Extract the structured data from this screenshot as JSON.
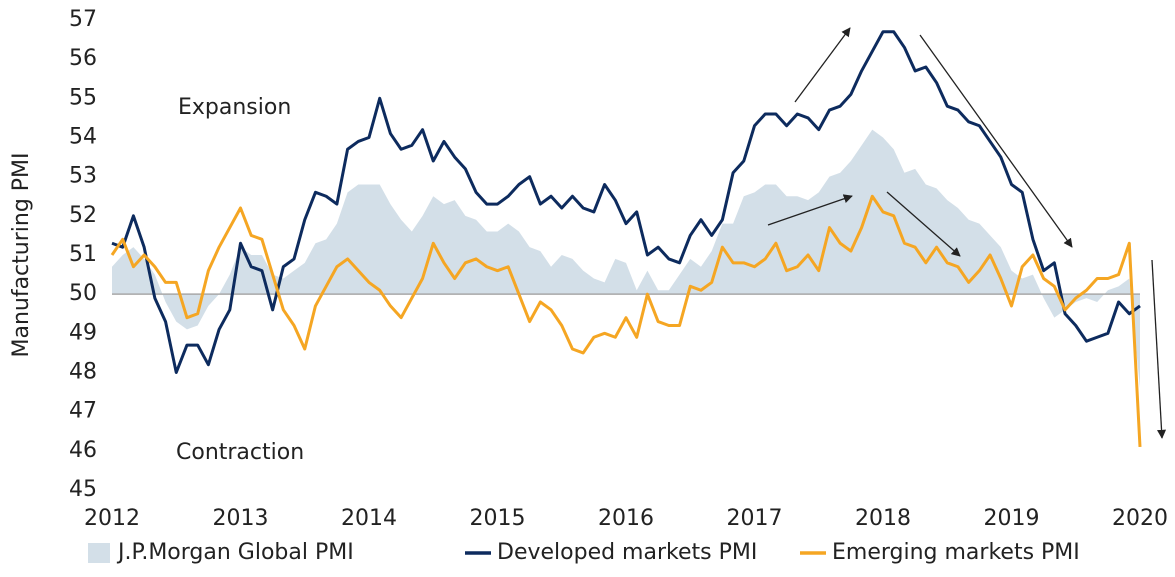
{
  "chart_data": {
    "type": "line",
    "ylabel": "Manufacturing PMI",
    "annotations": [
      "Expansion",
      "Contraction"
    ],
    "categories": [
      "2012",
      null,
      null,
      null,
      null,
      null,
      null,
      null,
      null,
      null,
      null,
      null,
      "2013",
      null,
      null,
      null,
      null,
      null,
      null,
      null,
      null,
      null,
      null,
      null,
      "2014",
      null,
      null,
      null,
      null,
      null,
      null,
      null,
      null,
      null,
      null,
      null,
      "2015",
      null,
      null,
      null,
      null,
      null,
      null,
      null,
      null,
      null,
      null,
      null,
      "2016",
      null,
      null,
      null,
      null,
      null,
      null,
      null,
      null,
      null,
      null,
      null,
      "2017",
      null,
      null,
      null,
      null,
      null,
      null,
      null,
      null,
      null,
      null,
      null,
      "2018",
      null,
      null,
      null,
      null,
      null,
      null,
      null,
      null,
      null,
      null,
      null,
      "2019",
      null,
      null,
      null,
      null,
      null,
      null,
      null,
      null,
      null,
      null,
      null,
      "2020"
    ],
    "ylim": [
      45,
      57
    ],
    "yticks": [
      45,
      46,
      47,
      48,
      49,
      50,
      51,
      52,
      53,
      54,
      55,
      56,
      57
    ],
    "reference_line": 50,
    "series": [
      {
        "name": "J.P.Morgan Global PMI",
        "kind": "area",
        "color": "#d3dfe8",
        "values": [
          50.7,
          51.0,
          51.2,
          50.9,
          50.5,
          49.8,
          49.3,
          49.1,
          49.2,
          49.7,
          50.0,
          50.5,
          51.2,
          51.0,
          51.0,
          50.5,
          50.4,
          50.6,
          50.8,
          51.3,
          51.4,
          51.8,
          52.6,
          52.8,
          52.8,
          52.8,
          52.3,
          51.9,
          51.6,
          52.0,
          52.5,
          52.3,
          52.4,
          52.0,
          51.9,
          51.6,
          51.6,
          51.8,
          51.6,
          51.2,
          51.1,
          50.7,
          51.0,
          50.9,
          50.6,
          50.4,
          50.3,
          50.9,
          50.8,
          50.1,
          50.6,
          50.1,
          50.1,
          50.5,
          50.9,
          50.7,
          51.1,
          51.8,
          51.8,
          52.5,
          52.6,
          52.8,
          52.8,
          52.5,
          52.5,
          52.4,
          52.6,
          53.0,
          53.1,
          53.4,
          53.8,
          54.2,
          54.0,
          53.7,
          53.1,
          53.2,
          52.8,
          52.7,
          52.4,
          52.2,
          51.9,
          51.8,
          51.5,
          51.2,
          50.6,
          50.4,
          50.5,
          49.9,
          49.4,
          49.6,
          49.8,
          49.9,
          49.8,
          50.1,
          50.2,
          50.4,
          47.6
        ]
      },
      {
        "name": "Developed markets PMI",
        "kind": "line",
        "color": "#0d2b5e",
        "values": [
          51.3,
          51.2,
          52.0,
          51.2,
          49.9,
          49.3,
          48.0,
          48.7,
          48.7,
          48.2,
          49.1,
          49.6,
          51.3,
          50.7,
          50.6,
          49.6,
          50.7,
          50.9,
          51.9,
          52.6,
          52.5,
          52.3,
          53.7,
          53.9,
          54.0,
          55.0,
          54.1,
          53.7,
          53.8,
          54.2,
          53.4,
          53.9,
          53.5,
          53.2,
          52.6,
          52.3,
          52.3,
          52.5,
          52.8,
          53.0,
          52.3,
          52.5,
          52.2,
          52.5,
          52.2,
          52.1,
          52.8,
          52.4,
          51.8,
          52.1,
          51.0,
          51.2,
          50.9,
          50.8,
          51.5,
          51.9,
          51.5,
          51.9,
          53.1,
          53.4,
          54.3,
          54.6,
          54.6,
          54.3,
          54.6,
          54.5,
          54.2,
          54.7,
          54.8,
          55.1,
          55.7,
          56.2,
          56.7,
          56.7,
          56.3,
          55.7,
          55.8,
          55.4,
          54.8,
          54.7,
          54.4,
          54.3,
          53.9,
          53.5,
          52.8,
          52.6,
          51.4,
          50.6,
          50.8,
          49.5,
          49.2,
          48.8,
          48.9,
          49.0,
          49.8,
          49.5,
          49.7
        ]
      },
      {
        "name": "Emerging markets PMI",
        "kind": "line",
        "color": "#f5a623",
        "values": [
          51.0,
          51.4,
          50.7,
          51.0,
          50.7,
          50.3,
          50.3,
          49.4,
          49.5,
          50.6,
          51.2,
          51.7,
          52.2,
          51.5,
          51.4,
          50.5,
          49.6,
          49.2,
          48.6,
          49.7,
          50.2,
          50.7,
          50.9,
          50.6,
          50.3,
          50.1,
          49.7,
          49.4,
          49.9,
          50.4,
          51.3,
          50.8,
          50.4,
          50.8,
          50.9,
          50.7,
          50.6,
          50.7,
          50.0,
          49.3,
          49.8,
          49.6,
          49.2,
          48.6,
          48.5,
          48.9,
          49.0,
          48.9,
          49.4,
          48.9,
          50.0,
          49.3,
          49.2,
          49.2,
          50.2,
          50.1,
          50.3,
          51.2,
          50.8,
          50.8,
          50.7,
          50.9,
          51.3,
          50.6,
          50.7,
          51.0,
          50.6,
          51.7,
          51.3,
          51.1,
          51.7,
          52.5,
          52.1,
          52.0,
          51.3,
          51.2,
          50.8,
          51.2,
          50.8,
          50.7,
          50.3,
          50.6,
          51.0,
          50.4,
          49.7,
          50.7,
          51.0,
          50.4,
          50.2,
          49.6,
          49.9,
          50.1,
          50.4,
          50.4,
          50.5,
          51.3,
          46.1
        ]
      }
    ],
    "legend": "bottom"
  }
}
